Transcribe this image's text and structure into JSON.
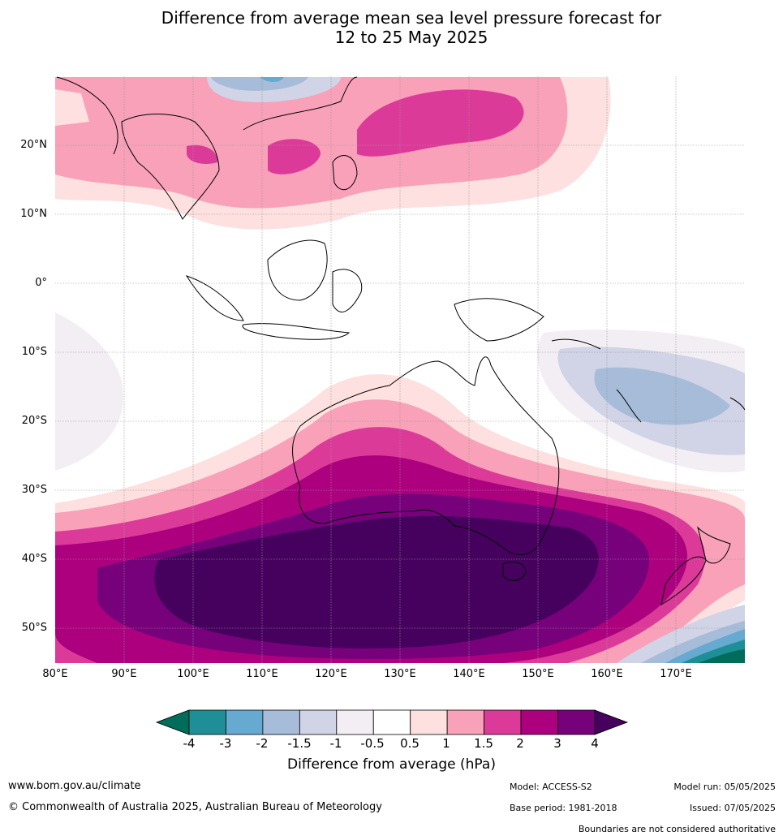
{
  "title_line1": "Difference from average mean sea level pressure forecast for",
  "title_line2": "12 to 25 May 2025",
  "lat_labels": [
    "20°N",
    "10°N",
    "0°",
    "10°S",
    "20°S",
    "30°S",
    "40°S",
    "50°S"
  ],
  "lon_labels": [
    "80°E",
    "90°E",
    "100°E",
    "110°E",
    "120°E",
    "130°E",
    "140°E",
    "150°E",
    "160°E",
    "170°E"
  ],
  "colorbar": {
    "title": "Difference from average (hPa)",
    "ticks": [
      "-4",
      "-3",
      "-2",
      "-1.5",
      "-1",
      "-0.5",
      "0.5",
      "1",
      "1.5",
      "2",
      "3",
      "4"
    ],
    "colors": [
      "#006c5a",
      "#1e8f96",
      "#66a9d1",
      "#a6bcd8",
      "#d1d3e6",
      "#f3eef3",
      "#ffffff",
      "#fde0df",
      "#f8a1b9",
      "#dc3a99",
      "#ad007e",
      "#76017a",
      "#46005e"
    ]
  },
  "footer": {
    "website": "www.bom.gov.au/climate",
    "copyright": "© Commonwealth of Australia 2025, Australian Bureau of Meteorology",
    "model": "Model: ACCESS-S2",
    "base_period": "Base period: 1981-2018",
    "model_run": "Model run: 05/05/2025",
    "issued": "Issued: 07/05/2025",
    "disclaimer": "Boundaries are not considered authoritative"
  }
}
